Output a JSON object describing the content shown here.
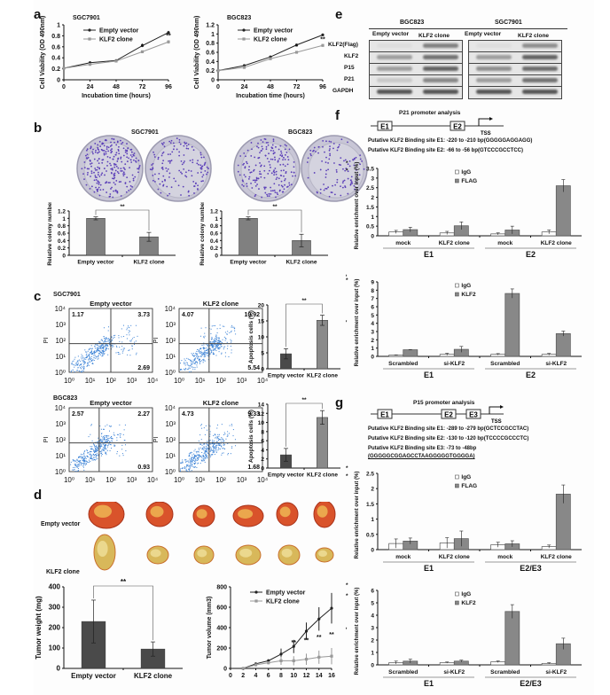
{
  "panels": {
    "a": {
      "letter": "a"
    },
    "b": {
      "letter": "b",
      "titles": [
        "SGC7901",
        "BGC823"
      ]
    },
    "c": {
      "letter": "c",
      "cells": [
        "SGC7901",
        "BGC823"
      ]
    },
    "d": {
      "letter": "d",
      "row_labels": [
        "Empty vector",
        "KLF2 clone"
      ]
    },
    "e": {
      "letter": "e",
      "cell_lines": [
        "BGC823",
        "SGC7901"
      ],
      "lanes": [
        "Empty vector",
        "KLF2 clone",
        "Empty vector",
        "KLF2 clone"
      ],
      "proteins": [
        "KLF2(Flag)",
        "KLF2",
        "P15",
        "P21",
        "GAPDH"
      ]
    },
    "f": {
      "letter": "f",
      "title": "P21 promoter analysis",
      "elements": [
        "E1",
        "E2"
      ],
      "tss": "TSS",
      "sites": [
        "Putative KLF2 Binding site E1: -220 to -210 bp(GGGGGAGGAGG)",
        "Putative KLF2 Binding site E2: -66 to -56 bp(GTCCCGCCTCC)"
      ]
    },
    "g": {
      "letter": "g",
      "title": "P15  promoter analysis",
      "elements": [
        "E1",
        "E2",
        "E3"
      ],
      "tss": "TSS",
      "sites": [
        "Putative KLF2 Binding site E1: -289 to -279 bp(GCTCCGCCTAC)",
        "Putative KLF2 Binding site E2: -130 to -120 bp(TCCCCGCCCTC)",
        "Putative KLF2 Binding site E3: -73 to -48bp",
        "(GGGGGCGGAGCCTAAGGGGGTGGGGA)"
      ]
    }
  },
  "flow": [
    {
      "cell": "SGC7901",
      "group": "Empty vector",
      "q": [
        "1.17",
        "3.73",
        "2.69"
      ]
    },
    {
      "cell": "SGC7901",
      "group": "KLF2 clone",
      "q": [
        "4.07",
        "10.92",
        "5.54"
      ]
    },
    {
      "cell": "BGC823",
      "group": "Empty vector",
      "q": [
        "2.57",
        "2.27",
        "0.93"
      ]
    },
    {
      "cell": "BGC823",
      "group": "KLF2 clone",
      "q": [
        "4.73",
        "9.33",
        "1.68"
      ]
    }
  ],
  "flow_axis": {
    "ylabel": "PI",
    "ticks": [
      "10⁰",
      "10¹",
      "10²",
      "10³",
      "10⁴"
    ]
  },
  "chart_data": [
    {
      "id": "a1",
      "type": "line",
      "title": "SGC7901",
      "xlabel": "Incubation time (hours)",
      "ylabel": "Cell Viability (OD 490nm)",
      "x": [
        0,
        24,
        48,
        72,
        96
      ],
      "xticks": [
        "0",
        "24",
        "48",
        "72",
        "96"
      ],
      "ylim": [
        0,
        1
      ],
      "yticks": [
        "0",
        "0.2",
        "0.4",
        "0.6",
        "0.8",
        "1"
      ],
      "ystep": 0.2,
      "legend": "top-left",
      "series": [
        {
          "name": "Empty vector",
          "values": [
            0.21,
            0.31,
            0.35,
            0.62,
            0.86
          ],
          "err": [
            0.01,
            0.02,
            0.02,
            0.02,
            0.03
          ]
        },
        {
          "name": "KLF2 clone",
          "values": [
            0.21,
            0.28,
            0.34,
            0.51,
            0.69
          ],
          "err": [
            0.01,
            0.02,
            0.02,
            0.02,
            0.03
          ]
        }
      ],
      "annotations": [
        {
          "x": 72,
          "text": "*"
        },
        {
          "x": 96,
          "text": "**"
        }
      ]
    },
    {
      "id": "a2",
      "type": "line",
      "title": "BGC823",
      "xlabel": "Incubation time (hours)",
      "ylabel": "Cell Viability (OD 490nm)",
      "x": [
        0,
        24,
        48,
        72,
        96
      ],
      "xticks": [
        "0",
        "24",
        "48",
        "72",
        "96"
      ],
      "ylim": [
        0,
        1.2
      ],
      "yticks": [
        "0",
        "0.2",
        "0.4",
        "0.6",
        "0.8",
        "1",
        "1.2"
      ],
      "ystep": 0.2,
      "legend": "top-left",
      "series": [
        {
          "name": "Empty vector",
          "values": [
            0.2,
            0.31,
            0.5,
            0.76,
            0.98
          ],
          "err": [
            0.01,
            0.02,
            0.02,
            0.02,
            0.03
          ]
        },
        {
          "name": "KLF2 clone",
          "values": [
            0.2,
            0.27,
            0.46,
            0.6,
            0.75
          ],
          "err": [
            0.01,
            0.02,
            0.02,
            0.02,
            0.03
          ]
        }
      ],
      "annotations": [
        {
          "x": 72,
          "text": "*"
        },
        {
          "x": 96,
          "text": "**"
        }
      ]
    },
    {
      "id": "b1",
      "type": "bar",
      "ylabel": "Relative colony number",
      "categories": [
        "Empty vector",
        "KLF2 clone"
      ],
      "values": [
        1.0,
        0.5
      ],
      "err": [
        0.04,
        0.12
      ],
      "ylim": [
        0,
        1.2
      ],
      "yticks": [
        "0",
        "0.2",
        "0.4",
        "0.6",
        "0.8",
        "1",
        "1.2"
      ],
      "sig": "**"
    },
    {
      "id": "b2",
      "type": "bar",
      "ylabel": "Relative colony number",
      "categories": [
        "Empty vector",
        "KLF2 clone"
      ],
      "values": [
        1.0,
        0.4
      ],
      "err": [
        0.04,
        0.17
      ],
      "ylim": [
        0,
        1.2
      ],
      "yticks": [
        "0",
        "0.2",
        "0.4",
        "0.6",
        "0.8",
        "1",
        "1.2"
      ],
      "sig": "**"
    },
    {
      "id": "c1",
      "type": "bar",
      "ylabel": "Apoptosis cells (%)",
      "categories": [
        "Empty vector",
        "KLF2 clone"
      ],
      "values": [
        4.7,
        15.2
      ],
      "err": [
        1.6,
        1.6
      ],
      "ylim": [
        0,
        20
      ],
      "yticks": [
        "0",
        "5",
        "10",
        "15",
        "20"
      ],
      "sig": "**"
    },
    {
      "id": "c2",
      "type": "bar",
      "ylabel": "Apoptosis cells (%)",
      "categories": [
        "Empty vector",
        "KLF2 clone"
      ],
      "values": [
        2.9,
        11.1
      ],
      "err": [
        1.4,
        1.5
      ],
      "ylim": [
        0,
        14
      ],
      "yticks": [
        "0",
        "2",
        "4",
        "6",
        "8",
        "10",
        "12",
        "14"
      ],
      "sig": "**"
    },
    {
      "id": "d1",
      "type": "bar",
      "ylabel": "Tumor weight (mg)",
      "categories": [
        "Empty vector",
        "KLF2 clone"
      ],
      "values": [
        230,
        95
      ],
      "err": [
        105,
        35
      ],
      "ylim": [
        0,
        400
      ],
      "yticks": [
        "0",
        "100",
        "200",
        "300",
        "400"
      ],
      "sig": "**"
    },
    {
      "id": "d2",
      "type": "line",
      "ylabel": "Tumor volume (mm3)",
      "xlabel": "",
      "x": [
        2,
        4,
        6,
        8,
        10,
        12,
        14,
        16
      ],
      "xticks": [
        "0",
        "2",
        "4",
        "6",
        "8",
        "10",
        "12",
        "14",
        "16"
      ],
      "xlim": [
        0,
        16
      ],
      "ylim": [
        0,
        800
      ],
      "yticks": [
        "0",
        "200",
        "400",
        "600",
        "800"
      ],
      "legend": "top-left",
      "series": [
        {
          "name": "Empty vector",
          "values": [
            0,
            45,
            75,
            140,
            215,
            365,
            485,
            590
          ],
          "err": [
            0,
            10,
            15,
            55,
            65,
            85,
            115,
            150
          ]
        },
        {
          "name": "KLF2 clone",
          "values": [
            0,
            35,
            55,
            75,
            75,
            90,
            110,
            120
          ],
          "err": [
            0,
            10,
            15,
            40,
            45,
            55,
            65,
            80
          ]
        }
      ],
      "annotations": [
        {
          "x": 10,
          "text": "**"
        },
        {
          "x": 12,
          "text": "**"
        },
        {
          "x": 14,
          "text": "**"
        },
        {
          "x": 16,
          "text": "**"
        }
      ]
    },
    {
      "id": "f1",
      "type": "bar",
      "ylabel": "Relative enrichment over input (%)",
      "categories": [
        "mock",
        "KLF2 clone",
        "mock",
        "KLF2 clone"
      ],
      "groups": [
        "E1",
        "E2"
      ],
      "ylim": [
        0,
        3.5
      ],
      "yticks": [
        "0",
        "0.5",
        "1",
        "1.5",
        "2",
        "2.5",
        "3",
        "3.5"
      ],
      "legend": "top-center",
      "series": [
        {
          "name": "IgG",
          "values": [
            0.2,
            0.15,
            0.1,
            0.2
          ],
          "err": [
            0.08,
            0.08,
            0.05,
            0.1
          ]
        },
        {
          "name": "FLAG",
          "values": [
            0.32,
            0.52,
            0.3,
            2.6
          ],
          "err": [
            0.12,
            0.2,
            0.2,
            0.32
          ]
        }
      ],
      "sig": [
        {
          "from": 2,
          "to": 3,
          "text": "**"
        },
        {
          "from": 3,
          "to": 3,
          "text": "**"
        }
      ]
    },
    {
      "id": "f2",
      "type": "bar",
      "ylabel": "Relative enrichment over input (%)",
      "categories": [
        "Scrambled",
        "si-KLF2",
        "Scrambled",
        "si-KLF2"
      ],
      "groups": [
        "E1",
        "E2"
      ],
      "ylim": [
        0,
        9
      ],
      "yticks": [
        "0",
        "1",
        "2",
        "3",
        "4",
        "5",
        "6",
        "7",
        "8",
        "9"
      ],
      "legend": "top-center",
      "series": [
        {
          "name": "IgG",
          "values": [
            0.15,
            0.25,
            0.25,
            0.25
          ],
          "err": [
            0.03,
            0.12,
            0.08,
            0.1
          ]
        },
        {
          "name": "KLF2",
          "values": [
            0.8,
            0.85,
            7.6,
            2.75
          ],
          "err": [
            0.03,
            0.35,
            0.55,
            0.3
          ]
        }
      ],
      "sig": [
        {
          "from": 2,
          "to": 2,
          "text": "**"
        },
        {
          "from": 2,
          "to": 3,
          "text": "*"
        },
        {
          "from": 3,
          "to": 3,
          "text": "*"
        }
      ]
    },
    {
      "id": "g1",
      "type": "bar",
      "ylabel": "Relative enrichment over input (%)",
      "categories": [
        "mock",
        "KLF2 clone",
        "mock",
        "KLF2 clone"
      ],
      "groups": [
        "E1",
        "E2/E3"
      ],
      "ylim": [
        0,
        2.5
      ],
      "yticks": [
        "0",
        "0.5",
        "1",
        "1.5",
        "2",
        "2.5"
      ],
      "legend": "top-center",
      "series": [
        {
          "name": "IgG",
          "values": [
            0.2,
            0.22,
            0.16,
            0.1
          ],
          "err": [
            0.15,
            0.17,
            0.08,
            0.05
          ]
        },
        {
          "name": "FLAG",
          "values": [
            0.28,
            0.36,
            0.19,
            1.82
          ],
          "err": [
            0.1,
            0.25,
            0.1,
            0.3
          ]
        }
      ],
      "sig": [
        {
          "from": 2,
          "to": 3,
          "text": "**"
        },
        {
          "from": 3,
          "to": 3,
          "text": "**"
        }
      ]
    },
    {
      "id": "g2",
      "type": "bar",
      "ylabel": "Relative enrichment over input (%)",
      "categories": [
        "Scrambled",
        "si-KLF2",
        "Scrambled",
        "si-KLF2"
      ],
      "groups": [
        "E1",
        "E2/E3"
      ],
      "ylim": [
        0,
        6
      ],
      "yticks": [
        "0",
        "1",
        "2",
        "3",
        "4",
        "5",
        "6"
      ],
      "legend": "top-center",
      "series": [
        {
          "name": "IgG",
          "values": [
            0.18,
            0.18,
            0.25,
            0.12
          ],
          "err": [
            0.12,
            0.05,
            0.06,
            0.05
          ]
        },
        {
          "name": "KLF2",
          "values": [
            0.3,
            0.3,
            4.3,
            1.7
          ],
          "err": [
            0.15,
            0.08,
            0.55,
            0.45
          ]
        }
      ],
      "sig": [
        {
          "from": 2,
          "to": 2,
          "text": "**"
        },
        {
          "from": 2,
          "to": 3,
          "text": "**"
        },
        {
          "from": 3,
          "to": 3,
          "text": "*"
        }
      ]
    }
  ]
}
